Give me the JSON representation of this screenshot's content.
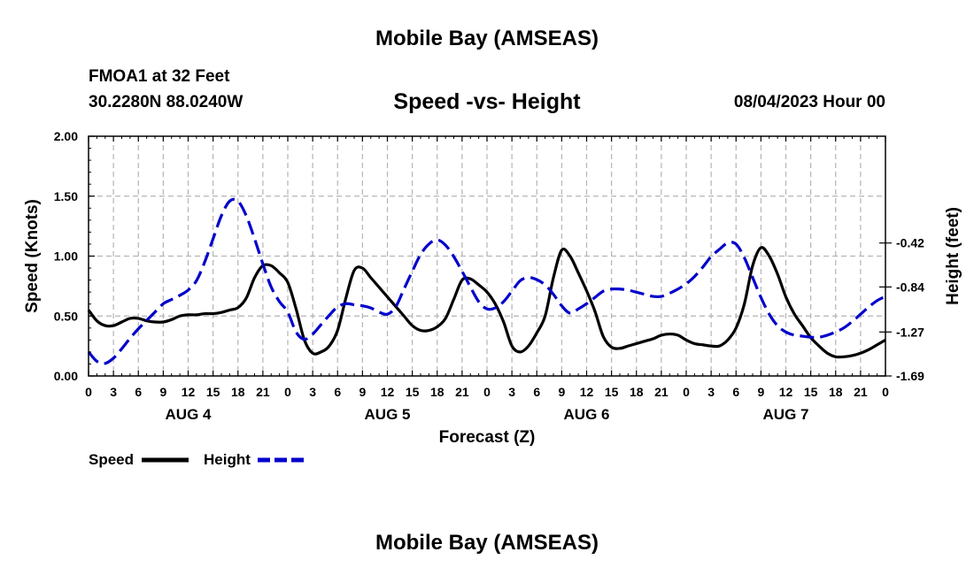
{
  "page": {
    "title": "Mobile Bay (AMSEAS)",
    "station": "FMOA1 at 32 Feet",
    "coords": "30.2280N  88.0240W",
    "subtitle": "Speed -vs- Height",
    "date": "08/04/2023 Hour 00",
    "bottom_title": "Mobile Bay (AMSEAS)"
  },
  "chart_data": {
    "type": "line",
    "title": "Speed -vs- Height",
    "xlabel": "Forecast (Z)",
    "ylabel": "Speed (Knots)",
    "y2label": "Height (feet)",
    "x_range": [
      0,
      96
    ],
    "x_ticks": [
      0,
      3,
      6,
      9,
      12,
      15,
      18,
      21,
      24,
      27,
      30,
      33,
      36,
      39,
      42,
      45,
      48,
      51,
      54,
      57,
      60,
      63,
      66,
      69,
      72,
      75,
      78,
      81,
      84,
      87,
      90,
      93,
      96
    ],
    "x_tick_labels": [
      "0",
      "3",
      "6",
      "9",
      "12",
      "15",
      "18",
      "21",
      "0",
      "3",
      "6",
      "9",
      "12",
      "15",
      "18",
      "21",
      "0",
      "3",
      "6",
      "9",
      "12",
      "15",
      "18",
      "21",
      "0",
      "3",
      "6",
      "9",
      "12",
      "15",
      "18",
      "21",
      "0"
    ],
    "day_labels": [
      {
        "x": 12,
        "label": "AUG 4"
      },
      {
        "x": 36,
        "label": "AUG 5"
      },
      {
        "x": 60,
        "label": "AUG 6"
      },
      {
        "x": 84,
        "label": "AUG 7"
      }
    ],
    "y_left": {
      "range": [
        0,
        2
      ],
      "ticks": [
        0,
        0.5,
        1.0,
        1.5,
        2.0
      ],
      "tick_labels": [
        "0.00",
        "0.50",
        "1.00",
        "1.50",
        "2.00"
      ]
    },
    "y_right": {
      "range": [
        -1.69,
        0.6
      ],
      "ticks": [
        -1.69,
        -1.27,
        -0.84,
        -0.42
      ],
      "tick_labels": [
        "-1.69",
        "-1.27",
        "-0.84",
        "-0.42"
      ]
    },
    "grid": true,
    "legend": {
      "placement": "bottom-left",
      "entries": [
        "Speed",
        "Height"
      ]
    },
    "series": [
      {
        "name": "Speed",
        "axis": "left",
        "color": "#000000",
        "dash": "solid",
        "x": [
          0,
          1,
          2,
          3,
          4,
          5,
          6,
          7,
          8,
          9,
          10,
          11,
          12,
          13,
          14,
          15,
          16,
          17,
          18,
          19,
          20,
          21,
          22,
          23,
          24,
          25,
          26,
          27,
          28,
          29,
          30,
          31,
          32,
          33,
          34,
          35,
          36,
          37,
          38,
          39,
          40,
          41,
          42,
          43,
          44,
          45,
          46,
          47,
          48,
          49,
          50,
          51,
          52,
          53,
          54,
          55,
          56,
          57,
          58,
          59,
          60,
          61,
          62,
          63,
          64,
          65,
          66,
          67,
          68,
          69,
          70,
          71,
          72,
          73,
          74,
          75,
          76,
          77,
          78,
          79,
          80,
          81,
          82,
          83,
          84,
          85,
          86,
          87,
          88,
          89,
          90,
          91,
          92,
          93,
          94,
          95,
          96
        ],
        "values": [
          0.55,
          0.46,
          0.42,
          0.42,
          0.45,
          0.48,
          0.48,
          0.46,
          0.45,
          0.45,
          0.47,
          0.5,
          0.51,
          0.51,
          0.52,
          0.52,
          0.53,
          0.55,
          0.57,
          0.65,
          0.82,
          0.92,
          0.92,
          0.86,
          0.78,
          0.56,
          0.3,
          0.19,
          0.2,
          0.25,
          0.38,
          0.65,
          0.88,
          0.9,
          0.82,
          0.74,
          0.66,
          0.58,
          0.5,
          0.42,
          0.38,
          0.38,
          0.41,
          0.48,
          0.64,
          0.8,
          0.81,
          0.76,
          0.7,
          0.6,
          0.45,
          0.25,
          0.2,
          0.25,
          0.36,
          0.5,
          0.82,
          1.05,
          1.0,
          0.86,
          0.71,
          0.54,
          0.33,
          0.24,
          0.23,
          0.25,
          0.27,
          0.29,
          0.31,
          0.34,
          0.35,
          0.34,
          0.3,
          0.27,
          0.26,
          0.25,
          0.25,
          0.3,
          0.4,
          0.6,
          0.92,
          1.07,
          1.0,
          0.85,
          0.66,
          0.52,
          0.42,
          0.32,
          0.25,
          0.19,
          0.16,
          0.16,
          0.17,
          0.19,
          0.22,
          0.26,
          0.3
        ]
      },
      {
        "name": "Height",
        "axis": "right",
        "color": "#0000cc",
        "dash": "dashed",
        "x": [
          0,
          1,
          2,
          3,
          4,
          5,
          6,
          7,
          8,
          9,
          10,
          11,
          12,
          13,
          14,
          15,
          16,
          17,
          18,
          19,
          20,
          21,
          22,
          23,
          24,
          25,
          26,
          27,
          28,
          29,
          30,
          31,
          32,
          33,
          34,
          35,
          36,
          37,
          38,
          39,
          40,
          41,
          42,
          43,
          44,
          45,
          46,
          47,
          48,
          49,
          50,
          51,
          52,
          53,
          54,
          55,
          56,
          57,
          58,
          59,
          60,
          61,
          62,
          63,
          64,
          65,
          66,
          67,
          68,
          69,
          70,
          71,
          72,
          73,
          74,
          75,
          76,
          77,
          78,
          79,
          80,
          81,
          82,
          83,
          84,
          85,
          86,
          87,
          88,
          89,
          90,
          91,
          92,
          93,
          94,
          95,
          96
        ],
        "values": [
          -1.46,
          -1.55,
          -1.57,
          -1.52,
          -1.43,
          -1.33,
          -1.24,
          -1.16,
          -1.08,
          -1.0,
          -0.96,
          -0.92,
          -0.87,
          -0.78,
          -0.6,
          -0.38,
          -0.16,
          -0.02,
          -0.02,
          -0.16,
          -0.38,
          -0.62,
          -0.84,
          -0.98,
          -1.08,
          -1.27,
          -1.34,
          -1.29,
          -1.2,
          -1.11,
          -1.03,
          -1.0,
          -1.01,
          -1.02,
          -1.04,
          -1.08,
          -1.1,
          -1.03,
          -0.86,
          -0.69,
          -0.53,
          -0.43,
          -0.39,
          -0.44,
          -0.55,
          -0.69,
          -0.84,
          -0.98,
          -1.05,
          -1.04,
          -0.98,
          -0.88,
          -0.78,
          -0.75,
          -0.77,
          -0.82,
          -0.91,
          -1.02,
          -1.09,
          -1.05,
          -1.0,
          -0.94,
          -0.88,
          -0.86,
          -0.86,
          -0.87,
          -0.89,
          -0.91,
          -0.93,
          -0.93,
          -0.9,
          -0.86,
          -0.81,
          -0.74,
          -0.65,
          -0.55,
          -0.48,
          -0.42,
          -0.43,
          -0.56,
          -0.75,
          -0.94,
          -1.1,
          -1.21,
          -1.27,
          -1.3,
          -1.31,
          -1.32,
          -1.32,
          -1.3,
          -1.27,
          -1.23,
          -1.17,
          -1.1,
          -1.03,
          -0.97,
          -0.93
        ]
      }
    ]
  }
}
